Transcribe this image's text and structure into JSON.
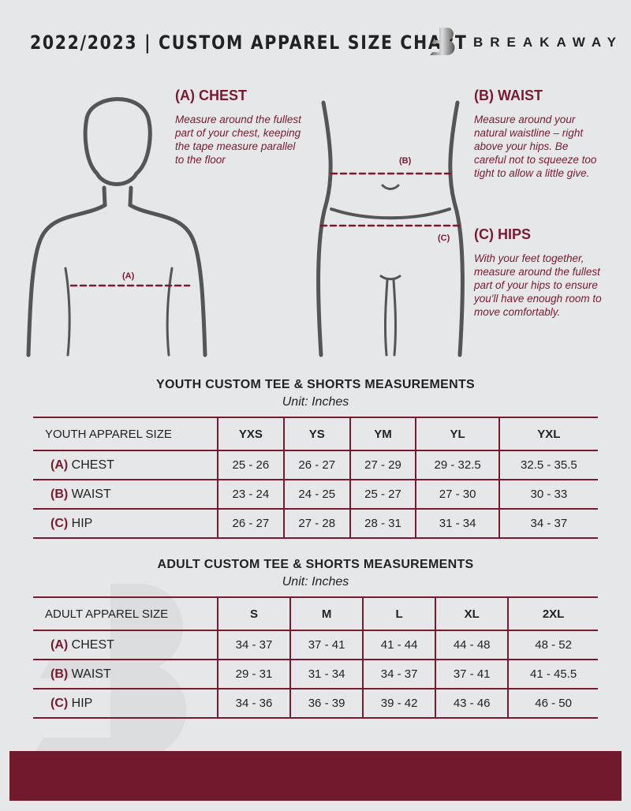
{
  "header": {
    "title": "2022/2023 | CUSTOM APPAREL SIZE CHART",
    "brand": "BREAKAWAY"
  },
  "chest": {
    "heading": "(A) CHEST",
    "description": "Measure around the fullest part of your chest, keeping the tape measure parallel to the floor",
    "marker": "(A)"
  },
  "waist": {
    "heading": "(B) WAIST",
    "description": "Measure around your natural waistline – right above your hips. Be careful not to squeeze too tight to allow a little give.",
    "marker": "(B)"
  },
  "hips": {
    "heading": "(C) HIPS",
    "description": "With your feet together, measure around the fullest part of your hips to ensure you'll have enough room to move comfortably.",
    "marker": "(C)"
  },
  "youth": {
    "title": "YOUTH CUSTOM TEE & SHORTS MEASUREMENTS",
    "unit": "Unit: Inches",
    "size_label": "YOUTH APPAREL SIZE",
    "sizes": [
      "YXS",
      "YS",
      "YM",
      "YL",
      "YXL"
    ],
    "rows": [
      {
        "code": "(A)",
        "name": "CHEST",
        "values": [
          "25 - 26",
          "26 - 27",
          "27 - 29",
          "29 - 32.5",
          "32.5 - 35.5"
        ]
      },
      {
        "code": "(B)",
        "name": "WAIST",
        "values": [
          "23 - 24",
          "24 - 25",
          "25 - 27",
          "27 - 30",
          "30 - 33"
        ]
      },
      {
        "code": "(C)",
        "name": "HIP",
        "values": [
          "26 - 27",
          "27 - 28",
          "28 - 31",
          "31 - 34",
          "34 - 37"
        ]
      }
    ]
  },
  "adult": {
    "title": "ADULT CUSTOM TEE & SHORTS MEASUREMENTS",
    "unit": "Unit: Inches",
    "size_label": "ADULT APPAREL SIZE",
    "sizes": [
      "S",
      "M",
      "L",
      "XL",
      "2XL"
    ],
    "rows": [
      {
        "code": "(A)",
        "name": "CHEST",
        "values": [
          "34 - 37",
          "37 - 41",
          "41 - 44",
          "44 - 48",
          "48 - 52"
        ]
      },
      {
        "code": "(B)",
        "name": "WAIST",
        "values": [
          "29 - 31",
          "31 - 34",
          "34 - 37",
          "37 - 41",
          "41 - 45.5"
        ]
      },
      {
        "code": "(C)",
        "name": "HIP",
        "values": [
          "34 - 36",
          "36 - 39",
          "39 - 42",
          "43 - 46",
          "46 - 50"
        ]
      }
    ]
  },
  "colors": {
    "accent": "#7a1a30",
    "background": "#e6e7e9"
  }
}
